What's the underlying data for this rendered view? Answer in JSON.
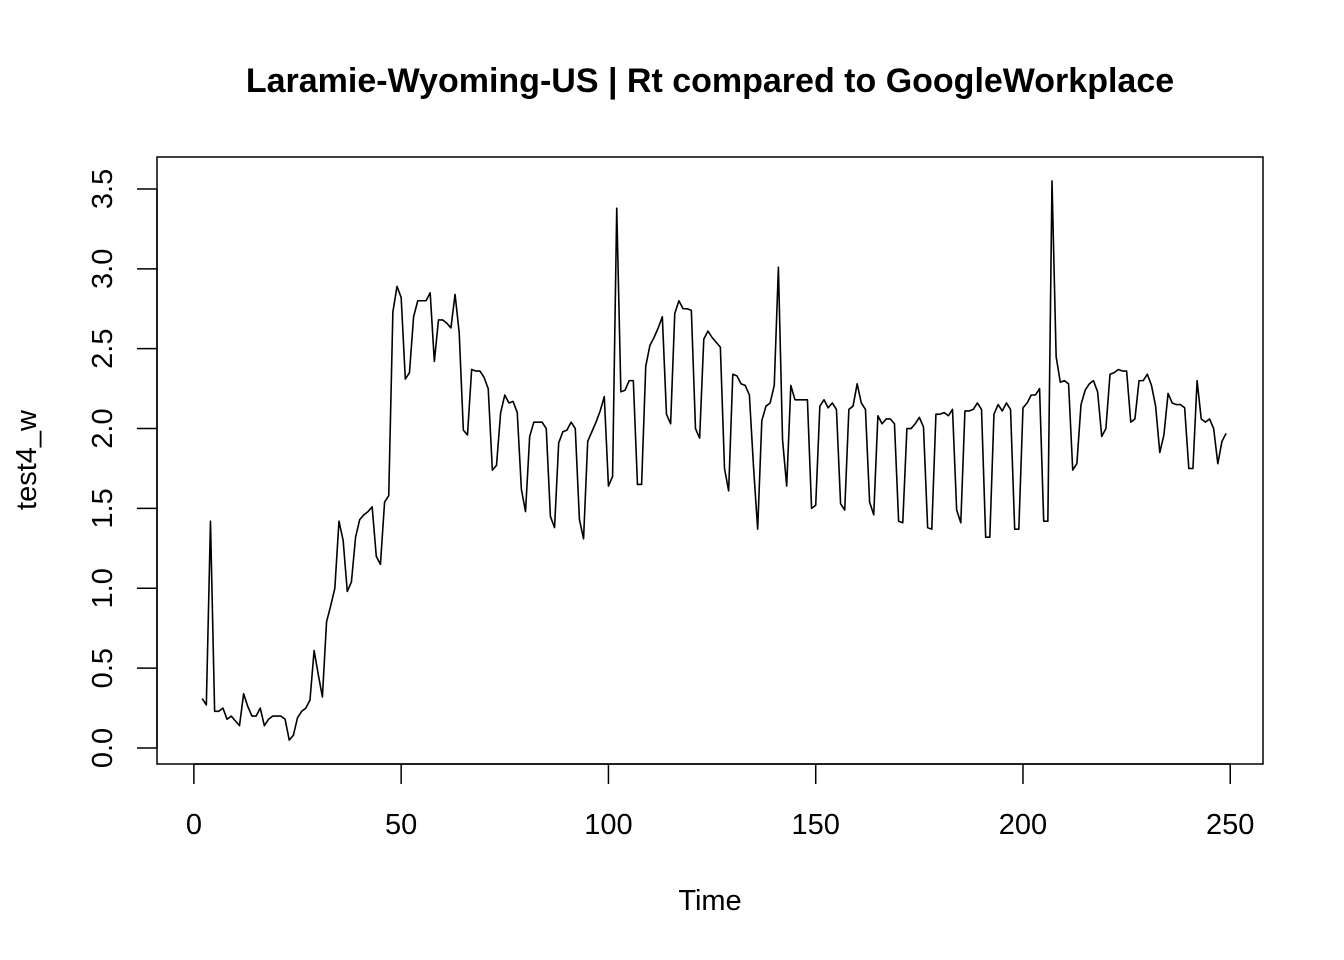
{
  "chart_data": {
    "type": "line",
    "title": "Laramie-Wyoming-US | Rt compared to GoogleWorkplace",
    "xlabel": "Time",
    "ylabel": "test4_w",
    "xlim": [
      -8.9,
      257.9
    ],
    "ylim": [
      -0.1,
      3.7
    ],
    "x_ticks": [
      "0",
      "50",
      "100",
      "150",
      "200",
      "250"
    ],
    "y_ticks": [
      "0.0",
      "0.5",
      "1.0",
      "1.5",
      "2.0",
      "2.5",
      "3.0",
      "3.5"
    ],
    "grid": false,
    "line_color": "#000000",
    "series": [
      {
        "x_start": 2,
        "values": [
          0.31,
          0.27,
          1.42,
          0.23,
          0.23,
          0.25,
          0.18,
          0.2,
          0.17,
          0.14,
          0.34,
          0.26,
          0.2,
          0.2,
          0.25,
          0.14,
          0.18,
          0.2,
          0.2,
          0.2,
          0.18,
          0.05,
          0.08,
          0.19,
          0.23,
          0.25,
          0.3,
          0.61,
          0.46,
          0.32,
          0.79,
          0.89,
          1.0,
          1.42,
          1.3,
          0.98,
          1.04,
          1.32,
          1.43,
          1.46,
          1.48,
          1.51,
          1.2,
          1.15,
          1.54,
          1.58,
          2.73,
          2.89,
          2.82,
          2.31,
          2.35,
          2.7,
          2.8,
          2.8,
          2.8,
          2.85,
          2.42,
          2.68,
          2.68,
          2.66,
          2.63,
          2.84,
          2.6,
          1.99,
          1.96,
          2.37,
          2.36,
          2.36,
          2.32,
          2.25,
          1.74,
          1.77,
          2.1,
          2.21,
          2.16,
          2.17,
          2.1,
          1.62,
          1.48,
          1.95,
          2.04,
          2.04,
          2.04,
          2.0,
          1.45,
          1.38,
          1.91,
          1.98,
          1.99,
          2.04,
          2.0,
          1.43,
          1.31,
          1.92,
          1.98,
          2.04,
          2.11,
          2.2,
          1.64,
          1.7,
          3.38,
          2.23,
          2.24,
          2.3,
          2.3,
          1.65,
          1.65,
          2.39,
          2.52,
          2.57,
          2.63,
          2.7,
          2.09,
          2.03,
          2.72,
          2.8,
          2.75,
          2.75,
          2.74,
          2.0,
          1.94,
          2.56,
          2.61,
          2.57,
          2.54,
          2.51,
          1.75,
          1.61,
          2.34,
          2.33,
          2.28,
          2.27,
          2.21,
          1.76,
          1.37,
          2.05,
          2.14,
          2.16,
          2.27,
          3.01,
          1.93,
          1.64,
          2.27,
          2.18,
          2.18,
          2.18,
          2.18,
          1.5,
          1.52,
          2.14,
          2.18,
          2.13,
          2.16,
          2.12,
          1.53,
          1.49,
          2.12,
          2.14,
          2.28,
          2.16,
          2.12,
          1.54,
          1.46,
          2.08,
          2.03,
          2.06,
          2.06,
          2.03,
          1.42,
          1.41,
          2.0,
          2.0,
          2.03,
          2.07,
          2.01,
          1.38,
          1.37,
          2.09,
          2.09,
          2.1,
          2.08,
          2.12,
          1.49,
          1.41,
          2.11,
          2.11,
          2.12,
          2.16,
          2.12,
          1.32,
          1.32,
          2.09,
          2.15,
          2.11,
          2.16,
          2.12,
          1.37,
          1.37,
          2.13,
          2.16,
          2.21,
          2.21,
          2.25,
          1.42,
          1.42,
          3.55,
          2.45,
          2.29,
          2.3,
          2.28,
          1.74,
          1.78,
          2.15,
          2.24,
          2.28,
          2.3,
          2.23,
          1.95,
          2.0,
          2.34,
          2.35,
          2.37,
          2.36,
          2.36,
          2.04,
          2.06,
          2.3,
          2.3,
          2.34,
          2.27,
          2.14,
          1.85,
          1.96,
          2.22,
          2.16,
          2.15,
          2.15,
          2.13,
          1.75,
          1.75,
          2.3,
          2.06,
          2.04,
          2.06,
          2.0,
          1.78,
          1.92,
          1.97
        ]
      }
    ]
  }
}
